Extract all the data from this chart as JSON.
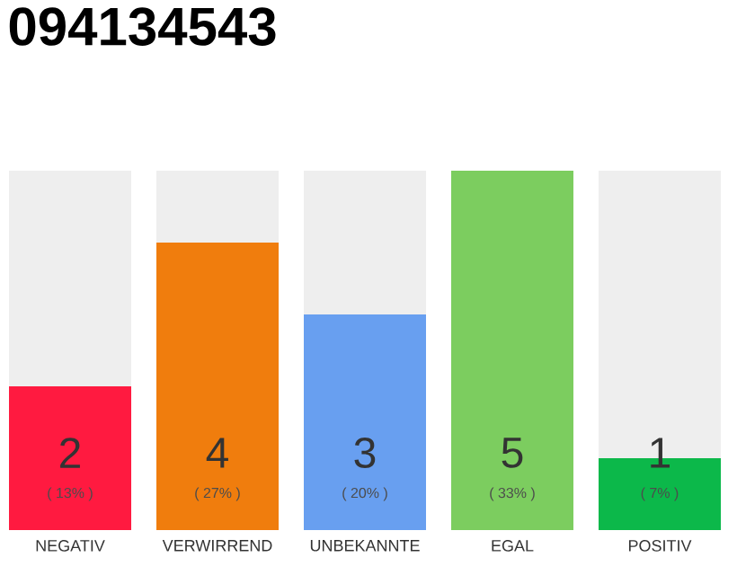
{
  "chart_data": {
    "type": "bar",
    "stacked": true,
    "title": "094134543",
    "categories": [
      "NEGATIV",
      "VERWIRREND",
      "UNBEKANNTE",
      "EGAL",
      "POSITIV"
    ],
    "series": [
      {
        "colors": [
          "#ff1a40",
          "#f07d0d",
          "#689ff0",
          "#7ccd5f",
          "#0cb84a"
        ],
        "values": [
          2,
          4,
          3,
          5,
          1
        ],
        "value_labels": [
          "2",
          "4",
          "3",
          "5",
          "1"
        ]
      },
      {
        "color": "#eeeeee",
        "values": [
          3,
          1,
          2,
          0,
          4
        ]
      }
    ],
    "annotations": [
      "( 13% )",
      "( 27% )",
      "( 20% )",
      "( 33% )",
      "( 7% )"
    ]
  }
}
